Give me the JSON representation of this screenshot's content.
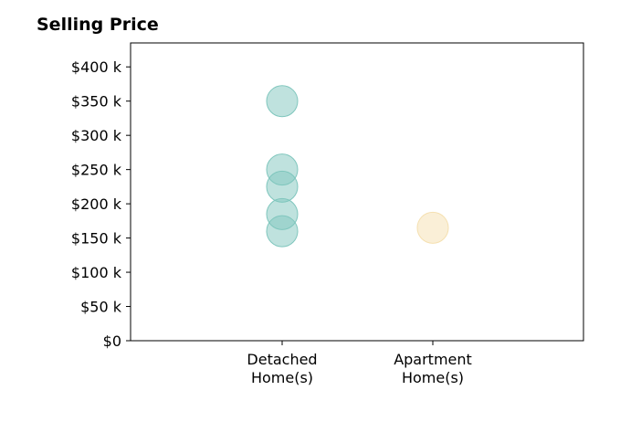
{
  "chart_data": {
    "type": "scatter",
    "title": "Selling Price",
    "xlabel": "",
    "ylabel": "",
    "categories": [
      [
        "Detached",
        "Home(s)"
      ],
      [
        "Apartment",
        "Home(s)"
      ]
    ],
    "ylim": [
      0,
      435000
    ],
    "yticks": [
      0,
      50000,
      100000,
      150000,
      200000,
      250000,
      300000,
      350000,
      400000
    ],
    "ytick_labels": [
      "$0",
      "$50 k",
      "$100 k",
      "$150 k",
      "$200 k",
      "$250 k",
      "$300 k",
      "$350 k",
      "$400 k"
    ],
    "grid": false,
    "series": [
      {
        "category_index": 0,
        "color": "#7fc6bd",
        "points": [
          160000,
          185000,
          225000,
          250000,
          350000
        ]
      },
      {
        "category_index": 1,
        "color": "#f5e0b0",
        "points": [
          165000
        ]
      }
    ]
  }
}
